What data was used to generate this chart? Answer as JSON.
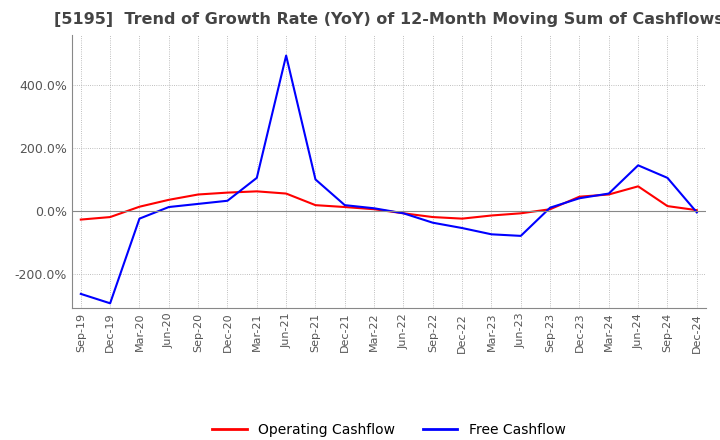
{
  "title": "[5195]  Trend of Growth Rate (YoY) of 12-Month Moving Sum of Cashflows",
  "title_fontsize": 11.5,
  "title_color": "#444444",
  "background_color": "#ffffff",
  "grid_color": "#aaaaaa",
  "xlabel": "",
  "ylabel": "",
  "ylim": [
    -310,
    560
  ],
  "ytick_values": [
    -200,
    0,
    200,
    400
  ],
  "legend_labels": [
    "Operating Cashflow",
    "Free Cashflow"
  ],
  "legend_colors": [
    "#ff0000",
    "#0000ff"
  ],
  "x_labels": [
    "Sep-19",
    "Dec-19",
    "Mar-20",
    "Jun-20",
    "Sep-20",
    "Dec-20",
    "Mar-21",
    "Jun-21",
    "Sep-21",
    "Dec-21",
    "Mar-22",
    "Jun-22",
    "Sep-22",
    "Dec-22",
    "Mar-23",
    "Jun-23",
    "Sep-23",
    "Dec-23",
    "Mar-24",
    "Jun-24",
    "Sep-24",
    "Dec-24"
  ],
  "operating_cashflow": [
    -28,
    -20,
    13,
    35,
    52,
    58,
    62,
    55,
    18,
    12,
    5,
    -8,
    -20,
    -25,
    -15,
    -8,
    5,
    45,
    52,
    78,
    15,
    2
  ],
  "free_cashflow": [
    -265,
    -295,
    -25,
    12,
    22,
    32,
    105,
    495,
    100,
    18,
    8,
    -8,
    -38,
    -55,
    -75,
    -80,
    10,
    40,
    55,
    145,
    105,
    -5
  ]
}
